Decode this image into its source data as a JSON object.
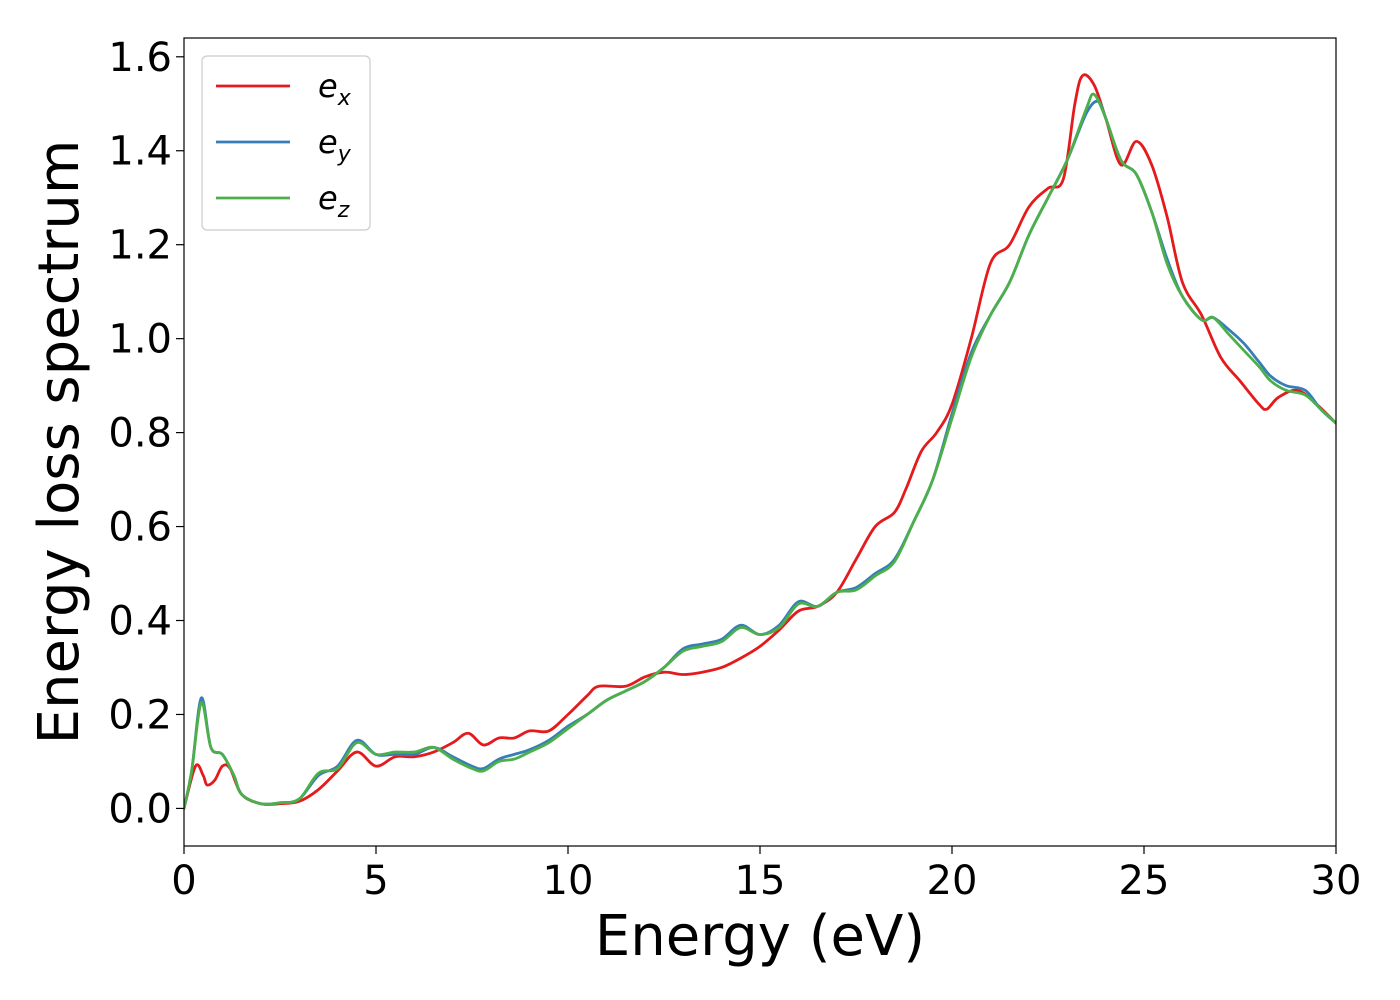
{
  "chart_data": {
    "type": "line",
    "title": "",
    "xlabel": "Energy (eV)",
    "ylabel": "Energy loss spectrum",
    "xlim": [
      0,
      30
    ],
    "ylim": [
      -0.08,
      1.64
    ],
    "xticks": [
      0,
      5,
      10,
      15,
      20,
      25,
      30
    ],
    "xtick_labels": [
      "0",
      "5",
      "10",
      "15",
      "20",
      "25",
      "30"
    ],
    "yticks": [
      0.0,
      0.2,
      0.4,
      0.6,
      0.8,
      1.0,
      1.2,
      1.4,
      1.6
    ],
    "ytick_labels": [
      "0.0",
      "0.2",
      "0.4",
      "0.6",
      "0.8",
      "1.0",
      "1.2",
      "1.4",
      "1.6"
    ],
    "grid": false,
    "legend_position": "top-left",
    "series": [
      {
        "name": "e_x",
        "legend_main": "e",
        "legend_sub": "x",
        "color": "#e41a1c",
        "points": [
          [
            0,
            0.0
          ],
          [
            0.3,
            0.09
          ],
          [
            0.5,
            0.07
          ],
          [
            0.6,
            0.05
          ],
          [
            0.8,
            0.06
          ],
          [
            1.0,
            0.09
          ],
          [
            1.2,
            0.085
          ],
          [
            1.5,
            0.03
          ],
          [
            2.0,
            0.01
          ],
          [
            2.5,
            0.01
          ],
          [
            3.0,
            0.015
          ],
          [
            3.5,
            0.04
          ],
          [
            4.0,
            0.08
          ],
          [
            4.5,
            0.12
          ],
          [
            5.0,
            0.09
          ],
          [
            5.5,
            0.11
          ],
          [
            6.0,
            0.11
          ],
          [
            6.5,
            0.12
          ],
          [
            7.0,
            0.14
          ],
          [
            7.4,
            0.16
          ],
          [
            7.8,
            0.135
          ],
          [
            8.2,
            0.15
          ],
          [
            8.6,
            0.15
          ],
          [
            9.0,
            0.165
          ],
          [
            9.5,
            0.165
          ],
          [
            10.0,
            0.2
          ],
          [
            10.5,
            0.24
          ],
          [
            10.8,
            0.26
          ],
          [
            11.5,
            0.26
          ],
          [
            12.0,
            0.28
          ],
          [
            12.5,
            0.29
          ],
          [
            13.0,
            0.285
          ],
          [
            13.5,
            0.29
          ],
          [
            14.0,
            0.3
          ],
          [
            14.5,
            0.32
          ],
          [
            15.0,
            0.345
          ],
          [
            15.5,
            0.38
          ],
          [
            16.0,
            0.42
          ],
          [
            16.5,
            0.43
          ],
          [
            17.0,
            0.46
          ],
          [
            17.5,
            0.53
          ],
          [
            18.0,
            0.6
          ],
          [
            18.5,
            0.63
          ],
          [
            18.8,
            0.68
          ],
          [
            19.2,
            0.76
          ],
          [
            19.6,
            0.8
          ],
          [
            20.0,
            0.86
          ],
          [
            20.5,
            1.0
          ],
          [
            21.0,
            1.16
          ],
          [
            21.5,
            1.2
          ],
          [
            22.0,
            1.28
          ],
          [
            22.5,
            1.32
          ],
          [
            22.9,
            1.34
          ],
          [
            23.2,
            1.5
          ],
          [
            23.4,
            1.56
          ],
          [
            23.7,
            1.54
          ],
          [
            24.0,
            1.47
          ],
          [
            24.4,
            1.37
          ],
          [
            24.8,
            1.42
          ],
          [
            25.2,
            1.37
          ],
          [
            25.6,
            1.26
          ],
          [
            26.0,
            1.12
          ],
          [
            26.5,
            1.05
          ],
          [
            27.0,
            0.96
          ],
          [
            27.5,
            0.91
          ],
          [
            28.0,
            0.86
          ],
          [
            28.2,
            0.85
          ],
          [
            28.5,
            0.875
          ],
          [
            29.0,
            0.89
          ],
          [
            29.5,
            0.86
          ],
          [
            30.0,
            0.82
          ]
        ]
      },
      {
        "name": "e_y",
        "legend_main": "e",
        "legend_sub": "y",
        "color": "#377eb8",
        "points": [
          [
            0,
            0.0
          ],
          [
            0.2,
            0.08
          ],
          [
            0.45,
            0.235
          ],
          [
            0.7,
            0.13
          ],
          [
            1.0,
            0.115
          ],
          [
            1.3,
            0.07
          ],
          [
            1.5,
            0.03
          ],
          [
            2.0,
            0.01
          ],
          [
            2.5,
            0.012
          ],
          [
            3.0,
            0.02
          ],
          [
            3.5,
            0.07
          ],
          [
            4.0,
            0.09
          ],
          [
            4.5,
            0.145
          ],
          [
            5.0,
            0.115
          ],
          [
            5.5,
            0.115
          ],
          [
            6.0,
            0.115
          ],
          [
            6.5,
            0.13
          ],
          [
            7.0,
            0.11
          ],
          [
            7.5,
            0.09
          ],
          [
            7.8,
            0.085
          ],
          [
            8.2,
            0.105
          ],
          [
            8.6,
            0.115
          ],
          [
            9.0,
            0.125
          ],
          [
            9.5,
            0.145
          ],
          [
            10.0,
            0.175
          ],
          [
            10.5,
            0.2
          ],
          [
            11.0,
            0.23
          ],
          [
            11.5,
            0.25
          ],
          [
            12.0,
            0.27
          ],
          [
            12.5,
            0.3
          ],
          [
            13.0,
            0.34
          ],
          [
            13.5,
            0.35
          ],
          [
            14.0,
            0.36
          ],
          [
            14.5,
            0.39
          ],
          [
            15.0,
            0.37
          ],
          [
            15.5,
            0.39
          ],
          [
            16.0,
            0.44
          ],
          [
            16.5,
            0.43
          ],
          [
            17.0,
            0.46
          ],
          [
            17.5,
            0.47
          ],
          [
            18.0,
            0.5
          ],
          [
            18.5,
            0.53
          ],
          [
            19.0,
            0.61
          ],
          [
            19.5,
            0.7
          ],
          [
            20.0,
            0.84
          ],
          [
            20.5,
            0.97
          ],
          [
            21.0,
            1.05
          ],
          [
            21.5,
            1.12
          ],
          [
            22.0,
            1.22
          ],
          [
            22.5,
            1.3
          ],
          [
            23.0,
            1.38
          ],
          [
            23.5,
            1.48
          ],
          [
            23.8,
            1.505
          ],
          [
            24.0,
            1.47
          ],
          [
            24.4,
            1.38
          ],
          [
            24.8,
            1.35
          ],
          [
            25.2,
            1.27
          ],
          [
            25.6,
            1.17
          ],
          [
            26.0,
            1.09
          ],
          [
            26.5,
            1.04
          ],
          [
            26.8,
            1.045
          ],
          [
            27.2,
            1.02
          ],
          [
            27.6,
            0.99
          ],
          [
            28.0,
            0.95
          ],
          [
            28.3,
            0.92
          ],
          [
            28.7,
            0.9
          ],
          [
            29.2,
            0.89
          ],
          [
            29.6,
            0.85
          ],
          [
            30.0,
            0.82
          ]
        ]
      },
      {
        "name": "e_z",
        "legend_main": "e",
        "legend_sub": "z",
        "color": "#4daf4a",
        "points": [
          [
            0,
            0.0
          ],
          [
            0.2,
            0.08
          ],
          [
            0.45,
            0.225
          ],
          [
            0.7,
            0.13
          ],
          [
            1.0,
            0.115
          ],
          [
            1.3,
            0.07
          ],
          [
            1.5,
            0.03
          ],
          [
            2.0,
            0.01
          ],
          [
            2.5,
            0.012
          ],
          [
            3.0,
            0.02
          ],
          [
            3.5,
            0.075
          ],
          [
            4.0,
            0.085
          ],
          [
            4.5,
            0.14
          ],
          [
            5.0,
            0.115
          ],
          [
            5.5,
            0.12
          ],
          [
            6.0,
            0.12
          ],
          [
            6.5,
            0.13
          ],
          [
            7.0,
            0.105
          ],
          [
            7.5,
            0.085
          ],
          [
            7.8,
            0.08
          ],
          [
            8.2,
            0.1
          ],
          [
            8.6,
            0.105
          ],
          [
            9.0,
            0.12
          ],
          [
            9.5,
            0.14
          ],
          [
            10.0,
            0.17
          ],
          [
            10.5,
            0.2
          ],
          [
            11.0,
            0.23
          ],
          [
            11.5,
            0.25
          ],
          [
            12.0,
            0.27
          ],
          [
            12.5,
            0.3
          ],
          [
            13.0,
            0.335
          ],
          [
            13.5,
            0.345
          ],
          [
            14.0,
            0.355
          ],
          [
            14.5,
            0.385
          ],
          [
            15.0,
            0.37
          ],
          [
            15.5,
            0.385
          ],
          [
            16.0,
            0.435
          ],
          [
            16.5,
            0.43
          ],
          [
            17.0,
            0.46
          ],
          [
            17.5,
            0.465
          ],
          [
            18.0,
            0.495
          ],
          [
            18.5,
            0.525
          ],
          [
            19.0,
            0.61
          ],
          [
            19.5,
            0.7
          ],
          [
            20.0,
            0.83
          ],
          [
            20.5,
            0.96
          ],
          [
            21.0,
            1.05
          ],
          [
            21.5,
            1.12
          ],
          [
            22.0,
            1.22
          ],
          [
            22.5,
            1.3
          ],
          [
            23.0,
            1.38
          ],
          [
            23.5,
            1.49
          ],
          [
            23.7,
            1.52
          ],
          [
            24.0,
            1.47
          ],
          [
            24.4,
            1.38
          ],
          [
            24.8,
            1.35
          ],
          [
            25.2,
            1.27
          ],
          [
            25.6,
            1.16
          ],
          [
            26.0,
            1.09
          ],
          [
            26.5,
            1.04
          ],
          [
            26.8,
            1.045
          ],
          [
            27.2,
            1.01
          ],
          [
            27.6,
            0.975
          ],
          [
            28.0,
            0.94
          ],
          [
            28.3,
            0.91
          ],
          [
            28.7,
            0.89
          ],
          [
            29.2,
            0.88
          ],
          [
            29.6,
            0.85
          ],
          [
            30.0,
            0.82
          ]
        ]
      }
    ]
  }
}
